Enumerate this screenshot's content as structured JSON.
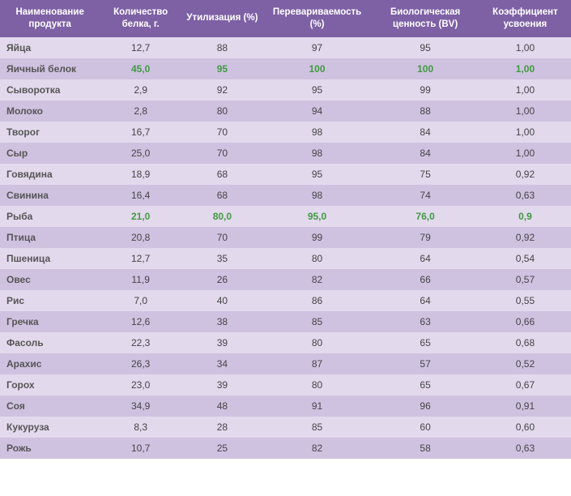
{
  "table": {
    "columns": [
      "Наименование продукта",
      "Количество белка, г.",
      "Утилизация (%)",
      "Перевариваемость (%)",
      "Биологическая ценность (BV)",
      "Коэффициент усвоения"
    ],
    "rows": [
      {
        "cells": [
          "Яйца",
          "12,7",
          "88",
          "97",
          "95",
          "1,00"
        ],
        "highlight": false
      },
      {
        "cells": [
          "Яичный белок",
          "45,0",
          "95",
          "100",
          "100",
          "1,00"
        ],
        "highlight": true
      },
      {
        "cells": [
          "Сыворотка",
          "2,9",
          "92",
          "95",
          "99",
          "1,00"
        ],
        "highlight": false
      },
      {
        "cells": [
          "Молоко",
          "2,8",
          "80",
          "94",
          "88",
          "1,00"
        ],
        "highlight": false
      },
      {
        "cells": [
          "Творог",
          "16,7",
          "70",
          "98",
          "84",
          "1,00"
        ],
        "highlight": false
      },
      {
        "cells": [
          "Сыр",
          "25,0",
          "70",
          "98",
          "84",
          "1,00"
        ],
        "highlight": false
      },
      {
        "cells": [
          "Говядина",
          "18,9",
          "68",
          "95",
          "75",
          "0,92"
        ],
        "highlight": false
      },
      {
        "cells": [
          "Свинина",
          "16,4",
          "68",
          "98",
          "74",
          "0,63"
        ],
        "highlight": false
      },
      {
        "cells": [
          "Рыба",
          "21,0",
          "80,0",
          "95,0",
          "76,0",
          "0,9"
        ],
        "highlight": true
      },
      {
        "cells": [
          "Птица",
          "20,8",
          "70",
          "99",
          "79",
          "0,92"
        ],
        "highlight": false
      },
      {
        "cells": [
          "Пшеница",
          "12,7",
          "35",
          "80",
          "64",
          "0,54"
        ],
        "highlight": false
      },
      {
        "cells": [
          "Овес",
          "11,9",
          "26",
          "82",
          "66",
          "0,57"
        ],
        "highlight": false
      },
      {
        "cells": [
          "Рис",
          "7,0",
          "40",
          "86",
          "64",
          "0,55"
        ],
        "highlight": false
      },
      {
        "cells": [
          "Гречка",
          "12,6",
          "38",
          "85",
          "63",
          "0,66"
        ],
        "highlight": false
      },
      {
        "cells": [
          "Фасоль",
          "22,3",
          "39",
          "80",
          "65",
          "0,68"
        ],
        "highlight": false
      },
      {
        "cells": [
          "Арахис",
          "26,3",
          "34",
          "87",
          "57",
          "0,52"
        ],
        "highlight": false
      },
      {
        "cells": [
          "Горох",
          "23,0",
          "39",
          "80",
          "65",
          "0,67"
        ],
        "highlight": false
      },
      {
        "cells": [
          "Соя",
          "34,9",
          "48",
          "91",
          "96",
          "0,91"
        ],
        "highlight": false
      },
      {
        "cells": [
          "Кукуруза",
          "8,3",
          "28",
          "85",
          "60",
          "0,60"
        ],
        "highlight": false
      },
      {
        "cells": [
          "Рожь",
          "10,7",
          "25",
          "82",
          "58",
          "0,63"
        ],
        "highlight": false
      }
    ],
    "colors": {
      "header_bg": "#7e60a5",
      "header_text": "#ffffff",
      "row_odd_bg": "#e3d9ed",
      "row_even_bg": "#cfc2e1",
      "cell_text": "#444444",
      "highlight_text": "#3f9a3f"
    },
    "font_size_header_pt": 11.5,
    "font_size_body_pt": 12
  }
}
